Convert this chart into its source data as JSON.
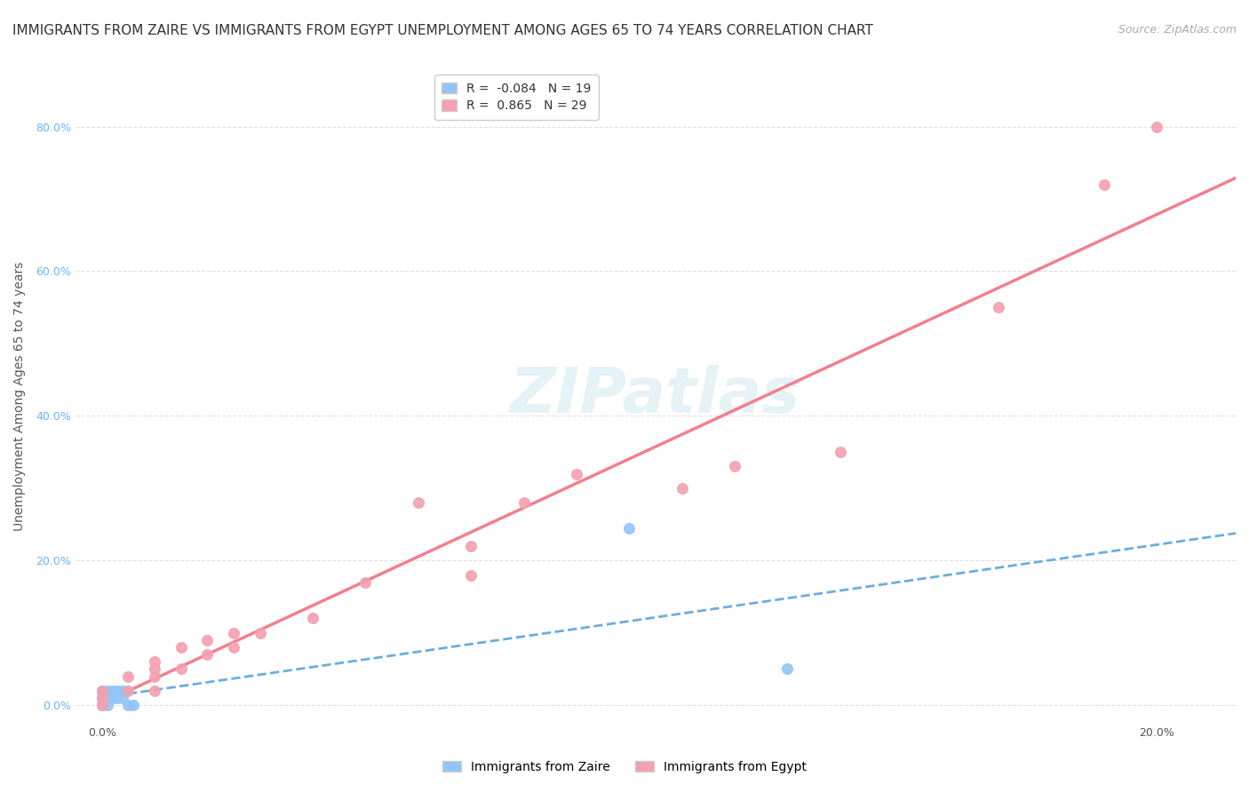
{
  "title": "IMMIGRANTS FROM ZAIRE VS IMMIGRANTS FROM EGYPT UNEMPLOYMENT AMONG AGES 65 TO 74 YEARS CORRELATION CHART",
  "source": "Source: ZipAtlas.com",
  "ylabel": "Unemployment Among Ages 65 to 74 years",
  "ytick_values": [
    0.0,
    0.2,
    0.4,
    0.6,
    0.8
  ],
  "xtick_values": [
    0.0,
    0.2
  ],
  "xlim": [
    -0.005,
    0.215
  ],
  "ylim": [
    -0.025,
    0.88
  ],
  "zaire_color": "#92c5f7",
  "egypt_color": "#f4a0b0",
  "zaire_line_color": "#6aaede",
  "egypt_line_color": "#f08090",
  "zaire_R": -0.084,
  "zaire_N": 19,
  "egypt_R": 0.865,
  "egypt_N": 29,
  "watermark": "ZIPatlas",
  "legend_label_zaire": "Immigrants from Zaire",
  "legend_label_egypt": "Immigrants from Egypt",
  "zaire_points_x": [
    0.0,
    0.0,
    0.0,
    0.0,
    0.0,
    0.0,
    0.0,
    0.001,
    0.001,
    0.002,
    0.002,
    0.003,
    0.003,
    0.004,
    0.004,
    0.005,
    0.006,
    0.1,
    0.13
  ],
  "zaire_points_y": [
    0.0,
    0.0,
    0.01,
    0.01,
    0.01,
    0.02,
    0.02,
    0.0,
    0.02,
    0.01,
    0.02,
    0.01,
    0.02,
    0.01,
    0.02,
    0.0,
    0.0,
    0.245,
    0.05
  ],
  "egypt_points_x": [
    0.0,
    0.0,
    0.0,
    0.005,
    0.005,
    0.01,
    0.01,
    0.01,
    0.01,
    0.015,
    0.015,
    0.02,
    0.02,
    0.025,
    0.025,
    0.03,
    0.04,
    0.05,
    0.06,
    0.07,
    0.07,
    0.08,
    0.09,
    0.11,
    0.12,
    0.14,
    0.17,
    0.19,
    0.2
  ],
  "egypt_points_y": [
    0.0,
    0.01,
    0.02,
    0.02,
    0.04,
    0.02,
    0.04,
    0.05,
    0.06,
    0.05,
    0.08,
    0.07,
    0.09,
    0.08,
    0.1,
    0.1,
    0.12,
    0.17,
    0.28,
    0.18,
    0.22,
    0.28,
    0.32,
    0.3,
    0.33,
    0.35,
    0.55,
    0.72,
    0.8
  ],
  "grid_color": "#e0e0e0",
  "background_color": "#ffffff",
  "title_fontsize": 11,
  "axis_label_fontsize": 10,
  "tick_fontsize": 9,
  "legend_fontsize": 10,
  "source_fontsize": 9,
  "ytick_color": "#6bb5f7",
  "xtick_color": "#555555"
}
